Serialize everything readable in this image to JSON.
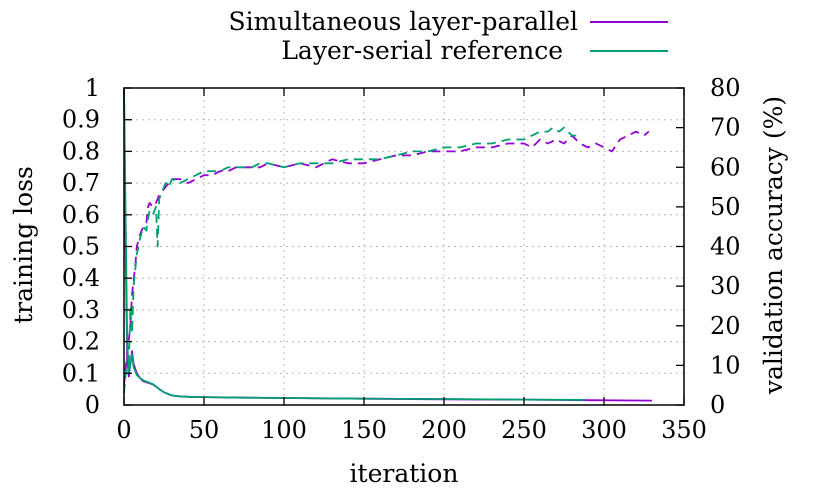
{
  "chart_data": {
    "type": "line",
    "xlabel": "iteration",
    "ylabel": "training loss",
    "y2label": "validation accuracy (%)",
    "xlim": [
      0,
      350
    ],
    "ylim": [
      0,
      1
    ],
    "y2lim": [
      0,
      80
    ],
    "xticks": [
      "0",
      "50",
      "100",
      "150",
      "200",
      "250",
      "300",
      "350"
    ],
    "yticks": [
      "0",
      "0.1",
      "0.2",
      "0.3",
      "0.4",
      "0.5",
      "0.6",
      "0.7",
      "0.8",
      "0.9",
      "1"
    ],
    "y2ticks": [
      "0",
      "10",
      "20",
      "30",
      "40",
      "50",
      "60",
      "70",
      "80"
    ],
    "grid": true,
    "legend_position": "top-right",
    "line_styles": {
      "training_loss": "solid",
      "validation_accuracy": "dashed"
    },
    "series": [
      {
        "name": "Simultaneous layer-parallel",
        "color": "#9400d3",
        "training_loss": {
          "x": [
            0,
            1,
            2,
            3,
            4,
            5,
            6,
            8,
            10,
            12,
            15,
            18,
            20,
            22,
            25,
            30,
            35,
            40,
            50,
            75,
            100,
            150,
            200,
            250,
            290,
            330
          ],
          "y": [
            1.0,
            0.5,
            0.15,
            0.09,
            0.13,
            0.17,
            0.13,
            0.1,
            0.085,
            0.075,
            0.07,
            0.065,
            0.058,
            0.05,
            0.04,
            0.03,
            0.027,
            0.026,
            0.025,
            0.023,
            0.022,
            0.02,
            0.018,
            0.017,
            0.015,
            0.014
          ]
        },
        "validation_accuracy": {
          "x": [
            0,
            2,
            4,
            5,
            7,
            8,
            10,
            12,
            14,
            15,
            16,
            18,
            20,
            22,
            24,
            26,
            28,
            30,
            35,
            40,
            45,
            50,
            55,
            60,
            65,
            70,
            75,
            80,
            85,
            90,
            100,
            110,
            120,
            130,
            140,
            150,
            160,
            170,
            180,
            190,
            200,
            210,
            220,
            230,
            240,
            250,
            255,
            260,
            265,
            270,
            275,
            280,
            285,
            290,
            295,
            300,
            305,
            310,
            315,
            320,
            325,
            328
          ],
          "y": [
            5,
            13,
            20,
            28,
            35,
            40,
            43,
            45,
            46,
            50,
            51,
            50,
            51,
            53,
            54,
            55,
            56,
            57,
            57,
            56,
            57,
            58,
            58,
            59,
            59,
            60,
            60,
            60,
            60,
            61,
            60,
            61,
            60,
            62,
            61,
            61,
            62,
            63,
            63,
            64,
            64,
            64,
            65,
            65,
            66,
            66,
            65,
            67,
            66,
            67,
            66,
            68,
            66,
            65,
            66,
            65,
            64,
            67,
            68,
            69,
            68,
            69
          ]
        }
      },
      {
        "name": "Layer-serial reference",
        "color": "#009e73",
        "training_loss": {
          "x": [
            0,
            1,
            2,
            3,
            4,
            5,
            6,
            8,
            10,
            12,
            15,
            18,
            20,
            22,
            25,
            30,
            35,
            40,
            50,
            75,
            100,
            150,
            200,
            250,
            288
          ],
          "y": [
            1.0,
            0.6,
            0.2,
            0.1,
            0.13,
            0.16,
            0.12,
            0.095,
            0.085,
            0.078,
            0.072,
            0.066,
            0.058,
            0.05,
            0.04,
            0.03,
            0.027,
            0.026,
            0.025,
            0.023,
            0.022,
            0.02,
            0.019,
            0.017,
            0.016
          ]
        },
        "validation_accuracy": {
          "x": [
            0,
            2,
            3,
            4,
            5,
            6,
            8,
            10,
            12,
            14,
            15,
            16,
            18,
            20,
            21,
            22,
            24,
            26,
            28,
            30,
            35,
            40,
            45,
            50,
            55,
            60,
            65,
            70,
            75,
            80,
            85,
            90,
            100,
            110,
            120,
            130,
            140,
            150,
            160,
            170,
            180,
            190,
            200,
            210,
            220,
            230,
            240,
            250,
            255,
            260,
            265,
            268,
            272,
            275,
            280,
            285
          ],
          "y": [
            3,
            12,
            10,
            25,
            18,
            30,
            38,
            42,
            45,
            44,
            47,
            49,
            48,
            50,
            40,
            52,
            54,
            56,
            55,
            57,
            56,
            57,
            58,
            59,
            59,
            59,
            60,
            60,
            60,
            60,
            61,
            61,
            60,
            61,
            61,
            61,
            62,
            62,
            62,
            63,
            64,
            64,
            65,
            65,
            66,
            66,
            67,
            67,
            68,
            69,
            69,
            70,
            69,
            70,
            68,
            68
          ]
        }
      }
    ]
  }
}
